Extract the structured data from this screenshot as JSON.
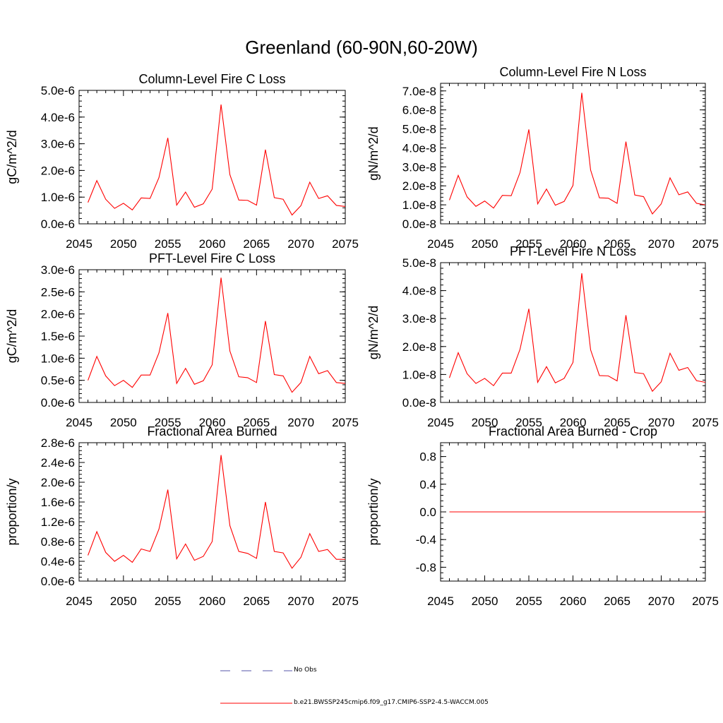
{
  "figure_title": "Greenland (60-90N,60-20W)",
  "chart_data": [
    {
      "type": "line",
      "title": "Column-Level Fire C Loss",
      "ylabel": "gC/m^2/d",
      "xlabel": "",
      "xlim": [
        2045,
        2075
      ],
      "ylim": [
        0,
        5e-06
      ],
      "xticks": [
        2045,
        2050,
        2055,
        2060,
        2065,
        2070,
        2075
      ],
      "yticks": [
        0,
        1e-06,
        2e-06,
        3e-06,
        4e-06,
        5e-06
      ],
      "ytick_labels": [
        "0.0e-6",
        "1.0e-6",
        "2.0e-6",
        "3.0e-6",
        "4.0e-6",
        "5.0e-6"
      ],
      "series": [
        {
          "name": "b.e21.BWSSP245cmip6.f09_g17.CMIP6-SSP2-4.5-WACCM.005",
          "color": "#ff0000",
          "x": [
            2046,
            2047,
            2048,
            2049,
            2050,
            2051,
            2052,
            2053,
            2054,
            2055,
            2056,
            2057,
            2058,
            2059,
            2060,
            2061,
            2062,
            2063,
            2064,
            2065,
            2066,
            2067,
            2068,
            2069,
            2070,
            2071,
            2072,
            2073,
            2074,
            2075
          ],
          "values": [
            8e-07,
            1.62e-06,
            9.2e-07,
            5.8e-07,
            7.7e-07,
            5.2e-07,
            9.7e-07,
            9.5e-07,
            1.73e-06,
            3.22e-06,
            7e-07,
            1.19e-06,
            6.2e-07,
            7.5e-07,
            1.3e-06,
            4.47e-06,
            1.84e-06,
            8.9e-07,
            8.8e-07,
            7e-07,
            2.78e-06,
            9.8e-07,
            9.2e-07,
            3.3e-07,
            6.8e-07,
            1.56e-06,
            9.5e-07,
            1.05e-06,
            6.9e-07,
            6.5e-07
          ]
        }
      ]
    },
    {
      "type": "line",
      "title": "Column-Level Fire N Loss",
      "ylabel": "gN/m^2/d",
      "xlabel": "",
      "xlim": [
        2045,
        2075
      ],
      "ylim": [
        0,
        7.4e-08
      ],
      "xticks": [
        2045,
        2050,
        2055,
        2060,
        2065,
        2070,
        2075
      ],
      "yticks": [
        0,
        1e-08,
        2e-08,
        3e-08,
        4e-08,
        5e-08,
        6e-08,
        7e-08
      ],
      "ytick_labels": [
        "0.0e-8",
        "1.0e-8",
        "2.0e-8",
        "3.0e-8",
        "4.0e-8",
        "5.0e-8",
        "6.0e-8",
        "7.0e-8"
      ],
      "series": [
        {
          "name": "b.e21.BWSSP245cmip6.f09_g17.CMIP6-SSP2-4.5-WACCM.005",
          "color": "#ff0000",
          "x": [
            2046,
            2047,
            2048,
            2049,
            2050,
            2051,
            2052,
            2053,
            2054,
            2055,
            2056,
            2057,
            2058,
            2059,
            2060,
            2061,
            2062,
            2063,
            2064,
            2065,
            2066,
            2067,
            2068,
            2069,
            2070,
            2071,
            2072,
            2073,
            2074,
            2075
          ],
          "values": [
            1.25e-08,
            2.55e-08,
            1.42e-08,
            9.2e-09,
            1.2e-08,
            8.3e-09,
            1.5e-08,
            1.48e-08,
            2.7e-08,
            4.97e-08,
            1.05e-08,
            1.83e-08,
            9.8e-09,
            1.18e-08,
            2.02e-08,
            6.9e-08,
            2.83e-08,
            1.37e-08,
            1.35e-08,
            1.08e-08,
            4.33e-08,
            1.52e-08,
            1.43e-08,
            5.2e-09,
            1.05e-08,
            2.42e-08,
            1.53e-08,
            1.68e-08,
            1.08e-08,
            1e-08
          ]
        }
      ]
    },
    {
      "type": "line",
      "title": "PFT-Level Fire C Loss",
      "ylabel": "gC/m^2/d",
      "xlabel": "",
      "xlim": [
        2045,
        2075
      ],
      "ylim": [
        0,
        3e-06
      ],
      "xticks": [
        2045,
        2050,
        2055,
        2060,
        2065,
        2070,
        2075
      ],
      "yticks": [
        0,
        5e-07,
        1e-06,
        1.5e-06,
        2e-06,
        2.5e-06,
        3e-06
      ],
      "ytick_labels": [
        "0.0e-6",
        "0.5e-6",
        "1.0e-6",
        "1.5e-6",
        "2.0e-6",
        "2.5e-6",
        "3.0e-6"
      ],
      "series": [
        {
          "name": "b.e21.BWSSP245cmip6.f09_g17.CMIP6-SSP2-4.5-WACCM.005",
          "color": "#ff0000",
          "x": [
            2046,
            2047,
            2048,
            2049,
            2050,
            2051,
            2052,
            2053,
            2054,
            2055,
            2056,
            2057,
            2058,
            2059,
            2060,
            2061,
            2062,
            2063,
            2064,
            2065,
            2066,
            2067,
            2068,
            2069,
            2070,
            2071,
            2072,
            2073,
            2074,
            2075
          ],
          "values": [
            5e-07,
            1.04e-06,
            6e-07,
            3.8e-07,
            5e-07,
            3.4e-07,
            6.2e-07,
            6.2e-07,
            1.12e-06,
            2.02e-06,
            4.3e-07,
            7.7e-07,
            4.1e-07,
            4.9e-07,
            8.5e-07,
            2.82e-06,
            1.16e-06,
            5.8e-07,
            5.6e-07,
            4.5e-07,
            1.84e-06,
            6.3e-07,
            6e-07,
            2.3e-07,
            4.5e-07,
            1.04e-06,
            6.5e-07,
            7.2e-07,
            4.5e-07,
            4.3e-07
          ]
        }
      ]
    },
    {
      "type": "line",
      "title": "PFT-Level Fire N Loss",
      "ylabel": "gN/m^2/d",
      "xlabel": "",
      "xlim": [
        2045,
        2075
      ],
      "ylim": [
        0,
        5e-08
      ],
      "xticks": [
        2045,
        2050,
        2055,
        2060,
        2065,
        2070,
        2075
      ],
      "yticks": [
        0,
        1e-08,
        2e-08,
        3e-08,
        4e-08,
        5e-08
      ],
      "ytick_labels": [
        "0.0e-8",
        "1.0e-8",
        "2.0e-8",
        "3.0e-8",
        "4.0e-8",
        "5.0e-8"
      ],
      "series": [
        {
          "name": "b.e21.BWSSP245cmip6.f09_g17.CMIP6-SSP2-4.5-WACCM.005",
          "color": "#ff0000",
          "x": [
            2046,
            2047,
            2048,
            2049,
            2050,
            2051,
            2052,
            2053,
            2054,
            2055,
            2056,
            2057,
            2058,
            2059,
            2060,
            2061,
            2062,
            2063,
            2064,
            2065,
            2066,
            2067,
            2068,
            2069,
            2070,
            2071,
            2072,
            2073,
            2074,
            2075
          ],
          "values": [
            8.8e-09,
            1.78e-08,
            1.03e-08,
            6.8e-09,
            8.6e-09,
            6e-09,
            1.05e-08,
            1.05e-08,
            1.9e-08,
            3.35e-08,
            7.2e-09,
            1.28e-08,
            7e-09,
            8.6e-09,
            1.43e-08,
            4.62e-08,
            1.88e-08,
            9.6e-09,
            9.5e-09,
            7.7e-09,
            3.12e-08,
            1.07e-08,
            1.03e-08,
            4e-09,
            7.4e-09,
            1.76e-08,
            1.15e-08,
            1.25e-08,
            7.8e-09,
            7.2e-09
          ]
        }
      ]
    },
    {
      "type": "line",
      "title": "Fractional Area Burned",
      "ylabel": "proportion/y",
      "xlabel": "",
      "xlim": [
        2045,
        2075
      ],
      "ylim": [
        0,
        2.8e-06
      ],
      "xticks": [
        2045,
        2050,
        2055,
        2060,
        2065,
        2070,
        2075
      ],
      "yticks": [
        0,
        4e-07,
        8e-07,
        1.2e-06,
        1.6e-06,
        2e-06,
        2.4e-06,
        2.8e-06
      ],
      "ytick_labels": [
        "0.0e-6",
        "0.4e-6",
        "0.8e-6",
        "1.2e-6",
        "1.6e-6",
        "2.0e-6",
        "2.4e-6",
        "2.8e-6"
      ],
      "series": [
        {
          "name": "b.e21.BWSSP245cmip6.f09_g17.CMIP6-SSP2-4.5-WACCM.005",
          "color": "#ff0000",
          "x": [
            2046,
            2047,
            2048,
            2049,
            2050,
            2051,
            2052,
            2053,
            2054,
            2055,
            2056,
            2057,
            2058,
            2059,
            2060,
            2061,
            2062,
            2063,
            2064,
            2065,
            2066,
            2067,
            2068,
            2069,
            2070,
            2071,
            2072,
            2073,
            2074,
            2075
          ],
          "values": [
            5.2e-07,
            1e-06,
            5.8e-07,
            4e-07,
            5.2e-07,
            3.8e-07,
            6.5e-07,
            6e-07,
            1.05e-06,
            1.85e-06,
            4.5e-07,
            7.5e-07,
            4.2e-07,
            5e-07,
            8e-07,
            2.55e-06,
            1.12e-06,
            6e-07,
            5.6e-07,
            4.6e-07,
            1.6e-06,
            6e-07,
            5.7e-07,
            2.6e-07,
            4.8e-07,
            9.6e-07,
            6e-07,
            6.4e-07,
            4.4e-07,
            4.4e-07
          ]
        }
      ]
    },
    {
      "type": "line",
      "title": "Fractional Area Burned - Crop",
      "ylabel": "proportion/y",
      "xlabel": "",
      "xlim": [
        2045,
        2075
      ],
      "ylim": [
        -1.0,
        1.0
      ],
      "xticks": [
        2045,
        2050,
        2055,
        2060,
        2065,
        2070,
        2075
      ],
      "yticks": [
        -0.8,
        -0.4,
        0.0,
        0.4,
        0.8
      ],
      "ytick_labels": [
        "-0.8",
        "-0.4",
        "0.0",
        "0.4",
        "0.8"
      ],
      "series": [
        {
          "name": "b.e21.BWSSP245cmip6.f09_g17.CMIP6-SSP2-4.5-WACCM.005",
          "color": "#ff0000",
          "x": [
            2046,
            2047,
            2048,
            2049,
            2050,
            2051,
            2052,
            2053,
            2054,
            2055,
            2056,
            2057,
            2058,
            2059,
            2060,
            2061,
            2062,
            2063,
            2064,
            2065,
            2066,
            2067,
            2068,
            2069,
            2070,
            2071,
            2072,
            2073,
            2074,
            2075
          ],
          "values": [
            0,
            0,
            0,
            0,
            0,
            0,
            0,
            0,
            0,
            0,
            0,
            0,
            0,
            0,
            0,
            0,
            0,
            0,
            0,
            0,
            0,
            0,
            0,
            0,
            0,
            0,
            0,
            0,
            0,
            0
          ]
        }
      ]
    }
  ],
  "legend": {
    "entries": [
      {
        "label": "No Obs",
        "color": "#5555aa",
        "style": "dashed"
      },
      {
        "label": "b.e21.BWSSP245cmip6.f09_g17.CMIP6-SSP2-4.5-WACCM.005",
        "color": "#ff0000",
        "style": "solid"
      }
    ]
  }
}
